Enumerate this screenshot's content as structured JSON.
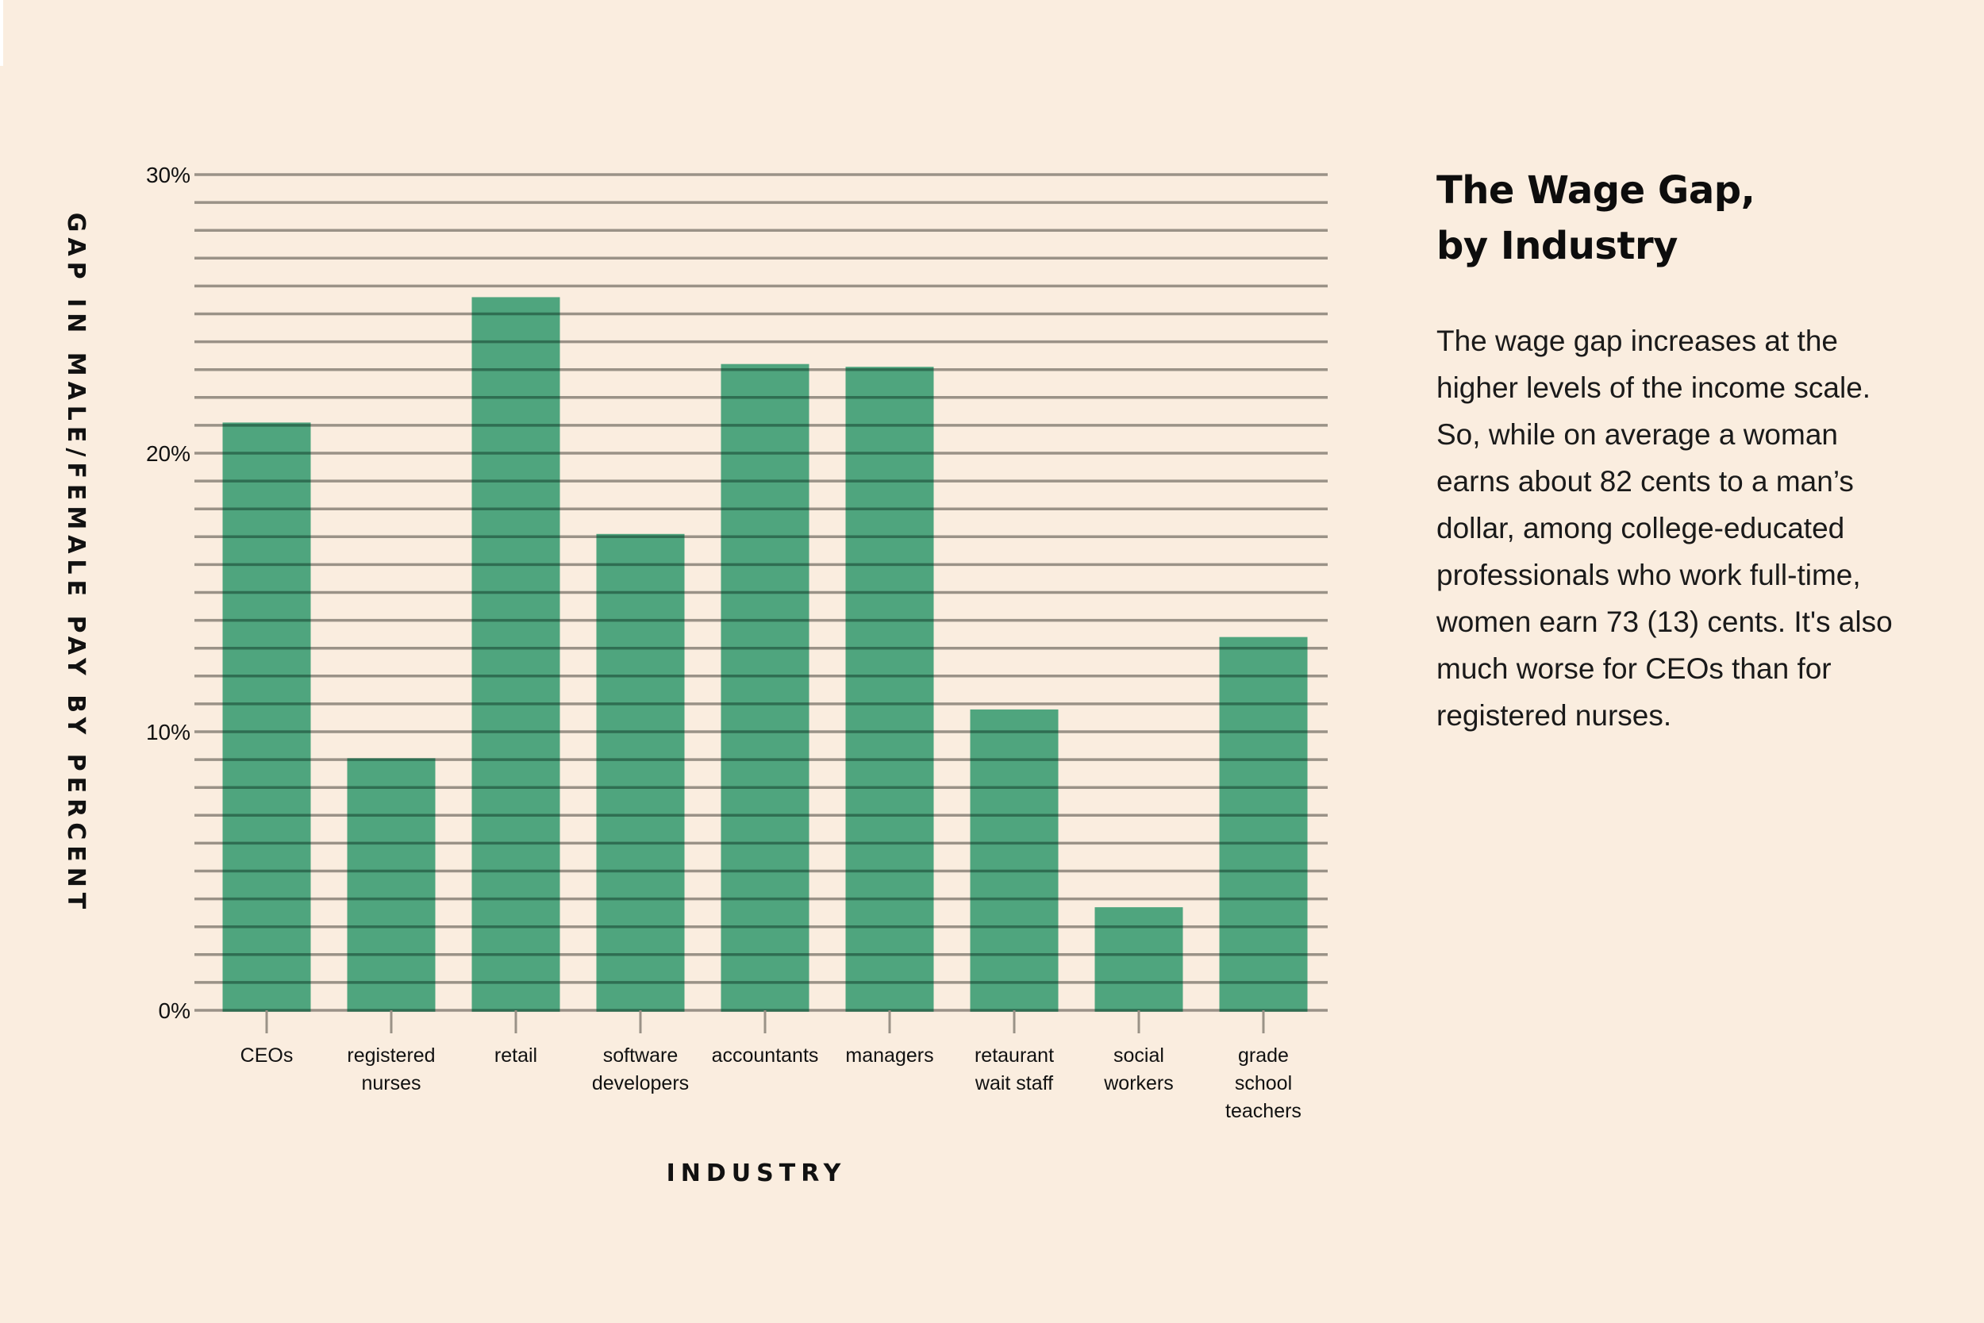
{
  "colors": {
    "background": "#faeddf",
    "bar": "#4fa57e",
    "gridline": "#9a9287",
    "gridline_on_bar": "#2f6e52",
    "text": "#111111"
  },
  "side_panel": {
    "title_line1": "The Wage Gap,",
    "title_line2": "by Industry",
    "body": "The wage gap increases at the higher levels of the income scale. So, while on average a woman earns about 82 cents to a man’s dollar, among college-educated professionals who work full-time, women earn 73 (13) cents. It's also much worse for CEOs than for registered nurses."
  },
  "chart_data": {
    "type": "bar",
    "title": "The Wage Gap, by Industry",
    "xlabel": "INDUSTRY",
    "ylabel": "GAP IN MALE/FEMALE PAY BY PERCENT",
    "categories": [
      "CEOs",
      "registered nurses",
      "retail",
      "software developers",
      "accountants",
      "managers",
      "retaurant wait staff",
      "social workers",
      "grade school teachers"
    ],
    "category_label_lines": [
      [
        "CEOs"
      ],
      [
        "registered",
        "nurses"
      ],
      [
        "retail"
      ],
      [
        "software",
        "developers"
      ],
      [
        "accountants"
      ],
      [
        "managers"
      ],
      [
        "retaurant",
        "wait staff"
      ],
      [
        "social",
        "workers"
      ],
      [
        "grade",
        "school",
        "teachers"
      ]
    ],
    "values": [
      21.1,
      9.0,
      25.6,
      17.1,
      23.2,
      23.1,
      10.8,
      3.7,
      13.4
    ],
    "units": "%",
    "ylim": [
      0,
      30
    ],
    "yticks": [
      0,
      10,
      20,
      30
    ],
    "ytick_labels": [
      "0%",
      "10%",
      "20%",
      "30%"
    ],
    "minor_gridline_step": 1,
    "grid": true,
    "legend": "none"
  }
}
